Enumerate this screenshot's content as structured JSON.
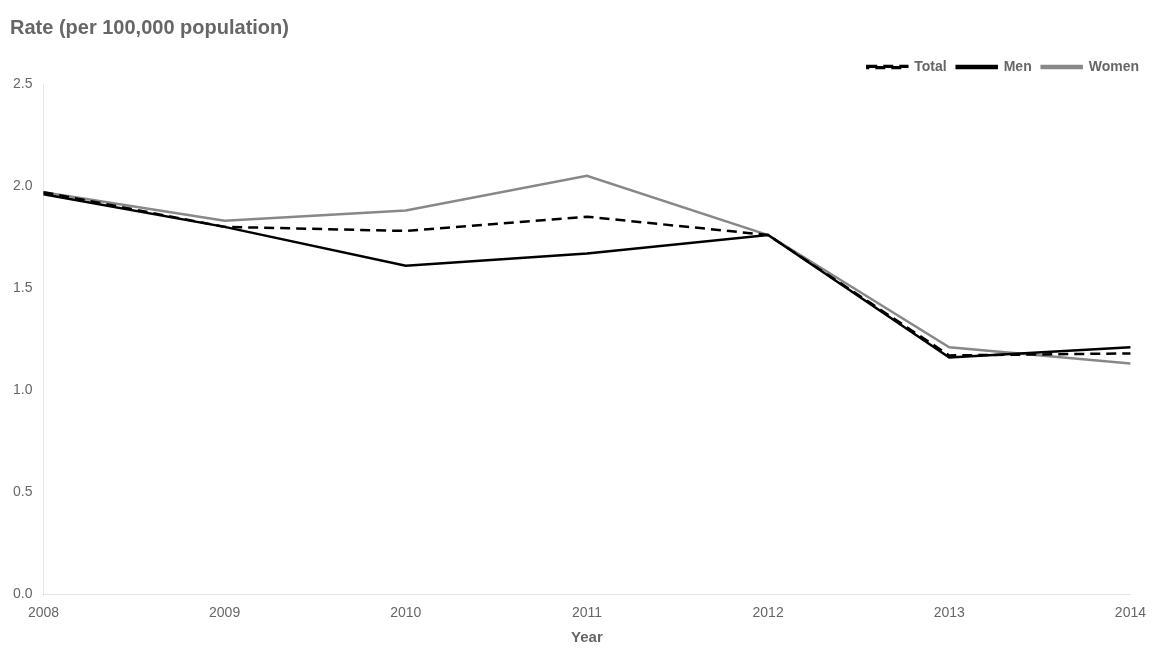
{
  "chart_data": {
    "type": "line",
    "title": "Rate (per 100,000 population)",
    "x_label": "Year",
    "categories": [
      "2008",
      "2009",
      "2010",
      "2011",
      "2012",
      "2013",
      "2014"
    ],
    "series": [
      {
        "name": "Total",
        "color": "#000000",
        "line_style": "dashed",
        "values": [
          1.97,
          1.8,
          1.78,
          1.85,
          1.76,
          1.17,
          1.18
        ]
      },
      {
        "name": "Men",
        "color": "#000000",
        "line_style": "solid",
        "values": [
          1.96,
          1.8,
          1.61,
          1.67,
          1.76,
          1.16,
          1.21
        ]
      },
      {
        "name": "Women",
        "color": "#888888",
        "line_style": "solid",
        "values": [
          1.97,
          1.83,
          1.88,
          2.05,
          1.76,
          1.21,
          1.13
        ]
      }
    ],
    "ylim": [
      0.0,
      2.5
    ],
    "yticks": [
      {
        "value": 0.0,
        "label": "0.0"
      },
      0.5,
      {
        "value": 1.0,
        "label": "1.0"
      },
      1.5,
      {
        "value": 2.0,
        "label": "2.0"
      },
      2.5
    ],
    "grid": false,
    "legend": "upper right"
  }
}
